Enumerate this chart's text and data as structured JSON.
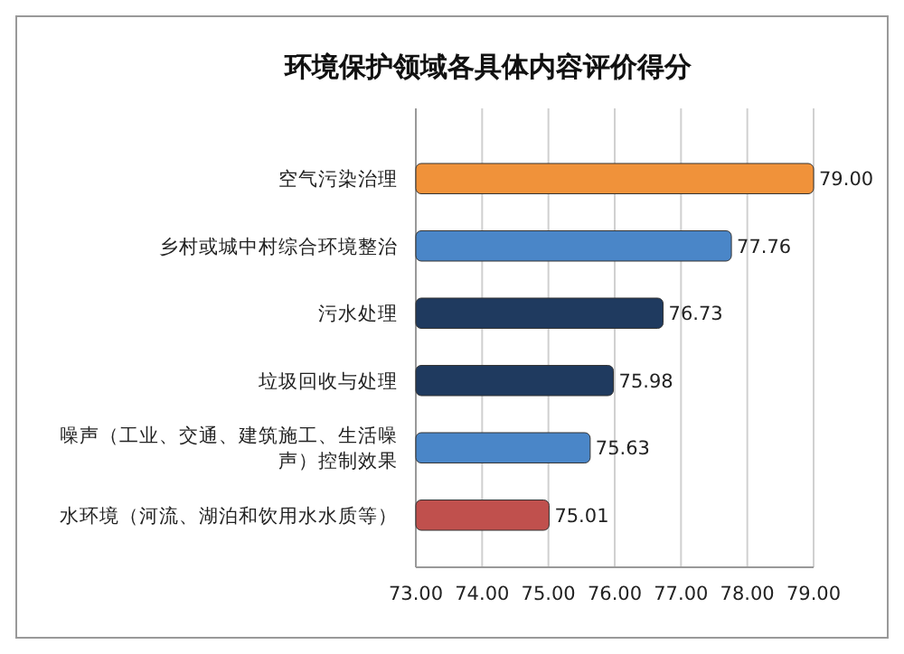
{
  "chart_data": {
    "type": "bar",
    "orientation": "horizontal",
    "title": "环境保护领域各具体内容评价得分",
    "categories": [
      "空气污染治理",
      "乡村或城中村综合环境整治",
      "污水处理",
      "垃圾回收与处理",
      "噪声（工业、交通、建筑施工、生活噪声）控制效果",
      "水环境（河流、湖泊和饮用水水质等）"
    ],
    "values": [
      79.0,
      77.76,
      76.73,
      75.98,
      75.63,
      75.01
    ],
    "colors": [
      "#f0923a",
      "#4a86c8",
      "#1f3a5f",
      "#1f3a5f",
      "#4a86c8",
      "#c0504d"
    ],
    "xlim": [
      73,
      79
    ],
    "xticks": [
      {
        "value": 73,
        "label": "73.00"
      },
      {
        "value": 74,
        "label": "74.00"
      },
      {
        "value": 75,
        "label": "75.00"
      },
      {
        "value": 76,
        "label": "76.00"
      },
      {
        "value": 77,
        "label": "77.00"
      },
      {
        "value": 78,
        "label": "78.00"
      },
      {
        "value": 79,
        "label": "79.00"
      }
    ],
    "value_labels": [
      "79.00",
      "77.76",
      "76.73",
      "75.98",
      "75.63",
      "75.01"
    ],
    "grid": "x"
  }
}
